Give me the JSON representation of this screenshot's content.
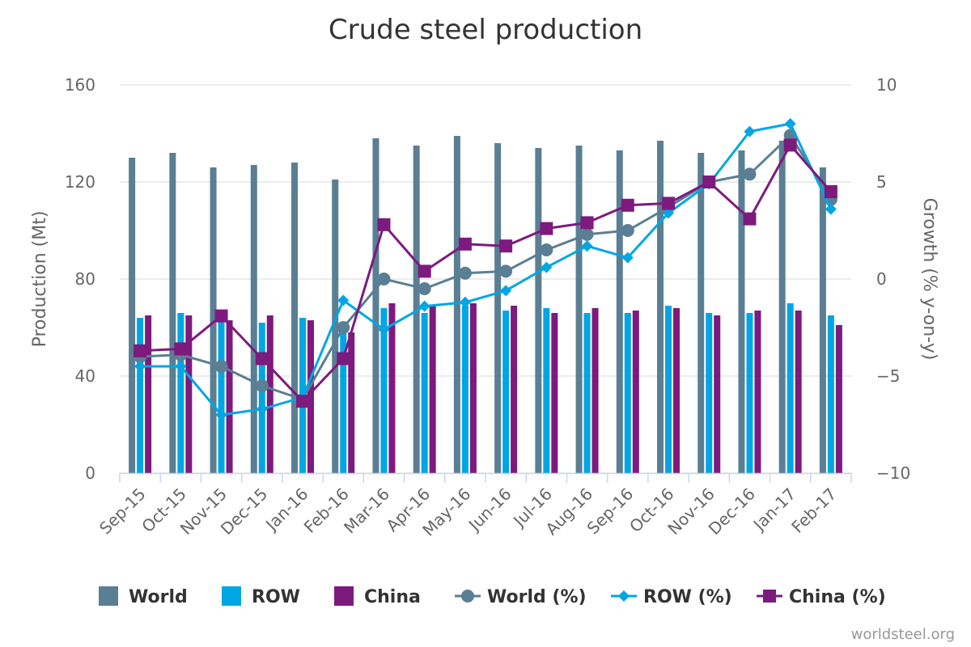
{
  "chart_data": {
    "type": "bar",
    "title": "Crude steel production",
    "credit": "worldsteel.org",
    "categories": [
      "Sep-15",
      "Oct-15",
      "Nov-15",
      "Dec-15",
      "Jan-16",
      "Feb-16",
      "Mar-16",
      "Apr-16",
      "May-16",
      "Jun-16",
      "Jul-16",
      "Aug-16",
      "Sep-16",
      "Oct-16",
      "Nov-16",
      "Dec-16",
      "Jan-17",
      "Feb-17"
    ],
    "ylabel": "Production (Mt)",
    "y2label": "Growth (% y-on-y)",
    "ylim": [
      0,
      160
    ],
    "yticks": [
      "0",
      "40",
      "80",
      "120",
      "160"
    ],
    "y2lim": [
      -10,
      10
    ],
    "y2ticks": [
      "−10",
      "−5",
      "0",
      "5",
      "10"
    ],
    "grid": true,
    "legend_position": "bottom",
    "colors": {
      "world": "#5a7f94",
      "row": "#00a6e4",
      "china": "#7d1a7e"
    },
    "bar_series": [
      {
        "name": "World",
        "key": "world",
        "values": [
          130,
          132,
          126,
          127,
          128,
          121,
          138,
          135,
          139,
          136,
          134,
          135,
          133,
          137,
          132,
          133,
          137,
          126
        ]
      },
      {
        "name": "ROW",
        "key": "row",
        "values": [
          64,
          66,
          64,
          62,
          64,
          62,
          68,
          66,
          69,
          67,
          68,
          66,
          66,
          69,
          66,
          66,
          70,
          65
        ]
      },
      {
        "name": "China",
        "key": "china",
        "values": [
          65,
          65,
          63,
          65,
          63,
          58,
          70,
          69,
          70,
          69,
          66,
          68,
          67,
          68,
          65,
          67,
          67,
          61
        ]
      }
    ],
    "line_series": [
      {
        "name": "World (%)",
        "key": "world",
        "marker": "circle",
        "values": [
          -4.0,
          -3.9,
          -4.5,
          -5.5,
          -6.2,
          -2.5,
          0.0,
          -0.5,
          0.3,
          0.4,
          1.5,
          2.3,
          2.5,
          3.7,
          5.0,
          5.4,
          7.4,
          4.1
        ]
      },
      {
        "name": "ROW (%)",
        "key": "row",
        "marker": "diamond",
        "values": [
          -4.5,
          -4.5,
          -7.0,
          -6.7,
          -6.1,
          -1.1,
          -2.6,
          -1.4,
          -1.2,
          -0.6,
          0.6,
          1.7,
          1.1,
          3.4,
          4.9,
          7.6,
          8.0,
          3.6
        ]
      },
      {
        "name": "China (%)",
        "key": "china",
        "marker": "square",
        "values": [
          -3.7,
          -3.6,
          -1.9,
          -4.1,
          -6.3,
          -4.1,
          2.8,
          0.4,
          1.8,
          1.7,
          2.6,
          2.9,
          3.8,
          3.9,
          5.0,
          3.1,
          6.9,
          4.5
        ]
      }
    ]
  }
}
